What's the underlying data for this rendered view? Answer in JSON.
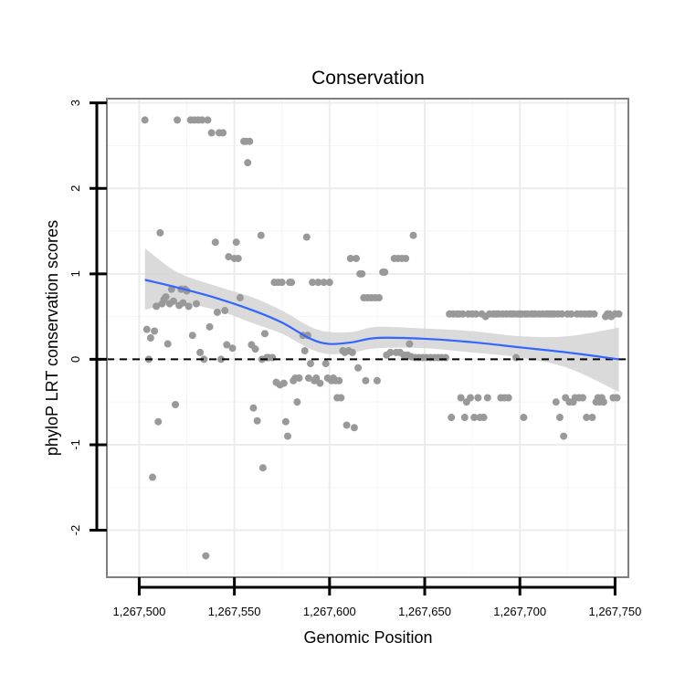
{
  "chart_data": {
    "type": "scatter",
    "title": "Conservation",
    "xlabel": "Genomic Position",
    "ylabel": "phyloP LRT conservation scores",
    "xlim": [
      1267483,
      1267757
    ],
    "ylim": [
      -2.55,
      3.05
    ],
    "x_ticks": [
      1267500,
      1267550,
      1267600,
      1267650,
      1267700,
      1267750
    ],
    "x_tick_labels": [
      "1,267,500",
      "1,267,550",
      "1,267,600",
      "1,267,650",
      "1,267,700",
      "1,267,750"
    ],
    "y_ticks": [
      -2,
      -1,
      0,
      1,
      2,
      3
    ],
    "y_tick_labels": [
      "-2",
      "-1",
      "0",
      "1",
      "2",
      "3"
    ],
    "reference_line": {
      "y": 0,
      "style": "dashed",
      "color": "#000000"
    },
    "points_color": "#999999",
    "smooth_color": "#3366FF",
    "ribbon_color": "#D3D3D3",
    "points": [
      [
        1267503,
        2.8
      ],
      [
        1267504,
        0.35
      ],
      [
        1267505,
        0
      ],
      [
        1267506,
        0.25
      ],
      [
        1267507,
        -1.38
      ],
      [
        1267508,
        0.33
      ],
      [
        1267509,
        0.62
      ],
      [
        1267510,
        -0.73
      ],
      [
        1267511,
        1.48
      ],
      [
        1267512,
        0.65
      ],
      [
        1267513,
        0.7
      ],
      [
        1267514,
        0.73
      ],
      [
        1267515,
        0.18
      ],
      [
        1267516,
        0.65
      ],
      [
        1267517,
        0.82
      ],
      [
        1267518,
        0.68
      ],
      [
        1267519,
        -0.53
      ],
      [
        1267520,
        2.8
      ],
      [
        1267521,
        0.63
      ],
      [
        1267522,
        0.82
      ],
      [
        1267523,
        0.66
      ],
      [
        1267524,
        0.82
      ],
      [
        1267525,
        0.8
      ],
      [
        1267526,
        0.62
      ],
      [
        1267527,
        2.8
      ],
      [
        1267528,
        0.28
      ],
      [
        1267529,
        2.8
      ],
      [
        1267530,
        0.65
      ],
      [
        1267531,
        2.8
      ],
      [
        1267532,
        0.08
      ],
      [
        1267533,
        2.8
      ],
      [
        1267534,
        0
      ],
      [
        1267535,
        -2.3
      ],
      [
        1267536,
        2.8
      ],
      [
        1267537,
        0.38
      ],
      [
        1267538,
        2.65
      ],
      [
        1267540,
        1.37
      ],
      [
        1267541,
        0.55
      ],
      [
        1267542,
        2.65
      ],
      [
        1267543,
        0
      ],
      [
        1267544,
        2.65
      ],
      [
        1267545,
        0.57
      ],
      [
        1267546,
        0.17
      ],
      [
        1267547,
        1.2
      ],
      [
        1267549,
        0.13
      ],
      [
        1267550,
        1.18
      ],
      [
        1267551,
        1.37
      ],
      [
        1267552,
        1.18
      ],
      [
        1267553,
        0.72
      ],
      [
        1267555,
        2.55
      ],
      [
        1267556,
        2.55
      ],
      [
        1267557,
        2.3
      ],
      [
        1267558,
        2.55
      ],
      [
        1267559,
        0.17
      ],
      [
        1267560,
        -0.57
      ],
      [
        1267561,
        0.12
      ],
      [
        1267562,
        -0.72
      ],
      [
        1267564,
        1.45
      ],
      [
        1267564.5,
        0
      ],
      [
        1267565,
        -1.27
      ],
      [
        1267566,
        0.3
      ],
      [
        1267567,
        0.02
      ],
      [
        1267568,
        0.02
      ],
      [
        1267570,
        0.02
      ],
      [
        1267571,
        0.9
      ],
      [
        1267572,
        -0.27
      ],
      [
        1267573,
        0.9
      ],
      [
        1267574,
        -0.3
      ],
      [
        1267575,
        0.9
      ],
      [
        1267576,
        -0.28
      ],
      [
        1267577,
        -0.73
      ],
      [
        1267578,
        -0.9
      ],
      [
        1267579,
        0.9
      ],
      [
        1267580,
        0.9
      ],
      [
        1267581,
        -0.25
      ],
      [
        1267582,
        -0.22
      ],
      [
        1267583,
        -0.5
      ],
      [
        1267584,
        -0.22
      ],
      [
        1267586,
        0.28
      ],
      [
        1267587,
        0.1
      ],
      [
        1267588,
        1.43
      ],
      [
        1267588.5,
        0.28
      ],
      [
        1267589,
        -0.22
      ],
      [
        1267590,
        -0.05
      ],
      [
        1267591,
        0.9
      ],
      [
        1267592,
        -0.25
      ],
      [
        1267593,
        -0.22
      ],
      [
        1267594,
        0.9
      ],
      [
        1267595,
        -0.28
      ],
      [
        1267597,
        0.9
      ],
      [
        1267598,
        -0.05
      ],
      [
        1267599,
        -0.22
      ],
      [
        1267600,
        0.9
      ],
      [
        1267601,
        -0.25
      ],
      [
        1267602,
        -0.22
      ],
      [
        1267603,
        -0.25
      ],
      [
        1267604,
        -0.45
      ],
      [
        1267605,
        -0.25
      ],
      [
        1267606,
        -0.45
      ],
      [
        1267607,
        0.1
      ],
      [
        1267608,
        0.08
      ],
      [
        1267609,
        -0.77
      ],
      [
        1267610,
        0.1
      ],
      [
        1267611,
        1.18
      ],
      [
        1267612,
        0.08
      ],
      [
        1267613,
        -0.8
      ],
      [
        1267614,
        1.18
      ],
      [
        1267615,
        -0.1
      ],
      [
        1267616,
        1.0
      ],
      [
        1267617,
        1.0
      ],
      [
        1267618,
        0.72
      ],
      [
        1267619,
        -0.25
      ],
      [
        1267620,
        0.72
      ],
      [
        1267622,
        0.72
      ],
      [
        1267624,
        0.72
      ],
      [
        1267625,
        -0.25
      ],
      [
        1267626,
        0.72
      ],
      [
        1267628,
        1.02
      ],
      [
        1267629,
        1.02
      ],
      [
        1267630,
        0.05
      ],
      [
        1267632,
        0.08
      ],
      [
        1267634,
        1.18
      ],
      [
        1267635,
        0.08
      ],
      [
        1267636,
        1.18
      ],
      [
        1267637,
        0.08
      ],
      [
        1267638,
        1.18
      ],
      [
        1267639,
        0.05
      ],
      [
        1267640,
        1.18
      ],
      [
        1267641,
        0.05
      ],
      [
        1267642,
        0.18
      ],
      [
        1267643,
        0.03
      ],
      [
        1267644,
        1.45
      ],
      [
        1267645,
        0.02
      ],
      [
        1267647,
        0.02
      ],
      [
        1267649,
        0.02
      ],
      [
        1267651,
        0.02
      ],
      [
        1267653,
        0.02
      ],
      [
        1267655,
        0.02
      ],
      [
        1267657,
        0.02
      ],
      [
        1267659,
        0.02
      ],
      [
        1267661,
        0.02
      ],
      [
        1267663,
        0.53
      ],
      [
        1267664,
        -0.68
      ],
      [
        1267665,
        0.53
      ],
      [
        1267667,
        0.53
      ],
      [
        1267668,
        0.53
      ],
      [
        1267669,
        -0.45
      ],
      [
        1267670,
        0.53
      ],
      [
        1267671,
        -0.68
      ],
      [
        1267672,
        -0.5
      ],
      [
        1267673,
        0.53
      ],
      [
        1267674,
        -0.45
      ],
      [
        1267675,
        0.53
      ],
      [
        1267676,
        -0.68
      ],
      [
        1267677,
        0.53
      ],
      [
        1267678,
        -0.45
      ],
      [
        1267679,
        -0.68
      ],
      [
        1267680,
        0.53
      ],
      [
        1267681,
        -0.68
      ],
      [
        1267682,
        0.5
      ],
      [
        1267683,
        -0.45
      ],
      [
        1267684,
        0.53
      ],
      [
        1267686,
        0.53
      ],
      [
        1267687,
        0.53
      ],
      [
        1267688,
        0.53
      ],
      [
        1267689,
        0.53
      ],
      [
        1267690,
        -0.45
      ],
      [
        1267691,
        0.53
      ],
      [
        1267692,
        -0.45
      ],
      [
        1267693,
        0.53
      ],
      [
        1267694,
        -0.45
      ],
      [
        1267695,
        0.53
      ],
      [
        1267696,
        0.53
      ],
      [
        1267697,
        0.53
      ],
      [
        1267698,
        0.02
      ],
      [
        1267699,
        0.53
      ],
      [
        1267700,
        0.53
      ],
      [
        1267701,
        0.53
      ],
      [
        1267702,
        -0.68
      ],
      [
        1267703,
        0.53
      ],
      [
        1267704,
        0.53
      ],
      [
        1267706,
        0.53
      ],
      [
        1267707,
        0.53
      ],
      [
        1267708,
        0.53
      ],
      [
        1267710,
        0.53
      ],
      [
        1267712,
        0.53
      ],
      [
        1267714,
        0.53
      ],
      [
        1267715,
        0.53
      ],
      [
        1267716,
        0.53
      ],
      [
        1267717,
        0.53
      ],
      [
        1267718,
        0.53
      ],
      [
        1267719,
        -0.5
      ],
      [
        1267720,
        0.53
      ],
      [
        1267721,
        -0.68
      ],
      [
        1267722,
        0.53
      ],
      [
        1267723,
        -0.9
      ],
      [
        1267724,
        -0.45
      ],
      [
        1267725,
        0.53
      ],
      [
        1267726,
        -0.5
      ],
      [
        1267727,
        0.53
      ],
      [
        1267728,
        -0.5
      ],
      [
        1267729,
        -0.45
      ],
      [
        1267730,
        0.53
      ],
      [
        1267731,
        -0.45
      ],
      [
        1267732,
        0.53
      ],
      [
        1267733,
        -0.45
      ],
      [
        1267734,
        0.53
      ],
      [
        1267735,
        -0.68
      ],
      [
        1267736,
        0.53
      ],
      [
        1267737,
        0.53
      ],
      [
        1267738,
        -0.68
      ],
      [
        1267739,
        0.53
      ],
      [
        1267740,
        -0.5
      ],
      [
        1267741,
        -0.45
      ],
      [
        1267742,
        -0.5
      ],
      [
        1267743,
        -0.45
      ],
      [
        1267744,
        -0.5
      ],
      [
        1267745,
        0.5
      ],
      [
        1267746,
        0.53
      ],
      [
        1267747,
        0.53
      ],
      [
        1267748,
        0.5
      ],
      [
        1267749,
        -0.45
      ],
      [
        1267750,
        0.53
      ],
      [
        1267751,
        -0.45
      ],
      [
        1267752,
        0.53
      ]
    ],
    "smooth": [
      {
        "x": 1267503,
        "y": 0.93,
        "lo": 0.58,
        "hi": 1.3
      },
      {
        "x": 1267520,
        "y": 0.84,
        "lo": 0.65,
        "hi": 1.02
      },
      {
        "x": 1267540,
        "y": 0.72,
        "lo": 0.58,
        "hi": 0.86
      },
      {
        "x": 1267560,
        "y": 0.57,
        "lo": 0.42,
        "hi": 0.72
      },
      {
        "x": 1267575,
        "y": 0.43,
        "lo": 0.3,
        "hi": 0.57
      },
      {
        "x": 1267590,
        "y": 0.24,
        "lo": 0.12,
        "hi": 0.38
      },
      {
        "x": 1267600,
        "y": 0.18,
        "lo": 0.06,
        "hi": 0.32
      },
      {
        "x": 1267612,
        "y": 0.2,
        "lo": 0.08,
        "hi": 0.32
      },
      {
        "x": 1267625,
        "y": 0.25,
        "lo": 0.13,
        "hi": 0.38
      },
      {
        "x": 1267650,
        "y": 0.24,
        "lo": 0.13,
        "hi": 0.36
      },
      {
        "x": 1267675,
        "y": 0.2,
        "lo": 0.08,
        "hi": 0.33
      },
      {
        "x": 1267700,
        "y": 0.14,
        "lo": 0.02,
        "hi": 0.27
      },
      {
        "x": 1267725,
        "y": 0.08,
        "lo": -0.1,
        "hi": 0.27
      },
      {
        "x": 1267752,
        "y": 0.0,
        "lo": -0.38,
        "hi": 0.37
      }
    ]
  }
}
